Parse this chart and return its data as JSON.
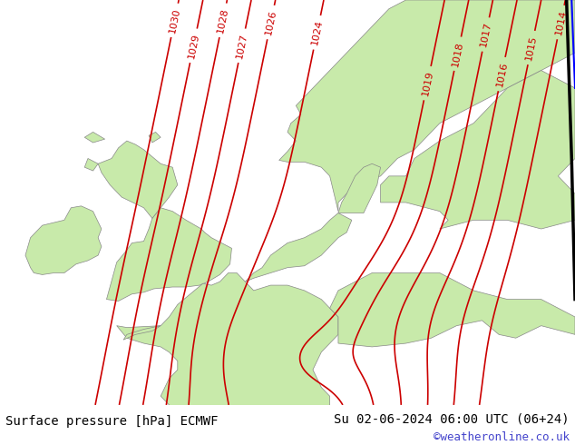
{
  "title_left": "Surface pressure [hPa] ECMWF",
  "title_right": "Su 02-06-2024 06:00 UTC (06+24)",
  "credit": "©weatheronline.co.uk",
  "land_color": "#c8eaaa",
  "sea_color": "#d8d8d8",
  "isobar_color": "#cc0000",
  "figsize": [
    6.34,
    4.9
  ],
  "dpi": 100,
  "xlim": [
    -12,
    22
  ],
  "ylim": [
    44,
    67
  ],
  "levels": [
    1014,
    1015,
    1016,
    1017,
    1018,
    1019,
    1024,
    1026,
    1027,
    1028,
    1029,
    1030
  ]
}
